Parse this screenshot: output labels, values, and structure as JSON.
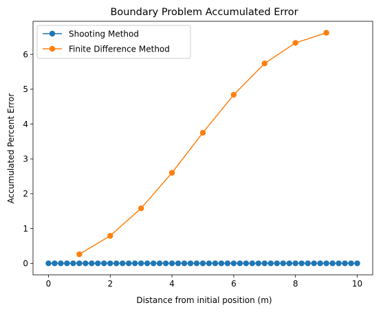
{
  "chart_data": {
    "type": "line",
    "title": "Boundary Problem Accumulated Error",
    "xlabel": "Distance from initial position (m)",
    "ylabel": "Accumulated Percent Error",
    "xlim": [
      -0.5,
      10.5
    ],
    "ylim": [
      -0.33,
      6.95
    ],
    "x_ticks": [
      0,
      2,
      4,
      6,
      8,
      10
    ],
    "y_ticks": [
      0,
      1,
      2,
      3,
      4,
      5,
      6
    ],
    "grid": false,
    "legend_position": "upper-left",
    "series": [
      {
        "name": "Shooting Method",
        "color": "#1f77b4",
        "marker": "circle",
        "x": [
          0,
          0.2,
          0.4,
          0.6,
          0.8,
          1.0,
          1.2,
          1.4,
          1.6,
          1.8,
          2.0,
          2.2,
          2.4,
          2.6,
          2.8,
          3.0,
          3.2,
          3.4,
          3.6,
          3.8,
          4.0,
          4.2,
          4.4,
          4.6,
          4.8,
          5.0,
          5.2,
          5.4,
          5.6,
          5.8,
          6.0,
          6.2,
          6.4,
          6.6,
          6.8,
          7.0,
          7.2,
          7.4,
          7.6,
          7.8,
          8.0,
          8.2,
          8.4,
          8.6,
          8.8,
          9.0,
          9.2,
          9.4,
          9.6,
          9.8,
          10.0
        ],
        "y": [
          0,
          0,
          0,
          0,
          0,
          0,
          0,
          0,
          0,
          0,
          0,
          0,
          0,
          0,
          0,
          0,
          0,
          0,
          0,
          0,
          0,
          0,
          0,
          0,
          0,
          0,
          0,
          0,
          0,
          0,
          0,
          0,
          0,
          0,
          0,
          0,
          0,
          0,
          0,
          0,
          0,
          0,
          0,
          0,
          0,
          0,
          0,
          0,
          0,
          0,
          0
        ]
      },
      {
        "name": "Finite Difference Method",
        "color": "#ff7f0e",
        "marker": "circle",
        "x": [
          1,
          2,
          3,
          4,
          5,
          6,
          7,
          8,
          9
        ],
        "y": [
          0.26,
          0.79,
          1.58,
          2.6,
          3.75,
          4.84,
          5.74,
          6.33,
          6.62
        ]
      }
    ]
  }
}
